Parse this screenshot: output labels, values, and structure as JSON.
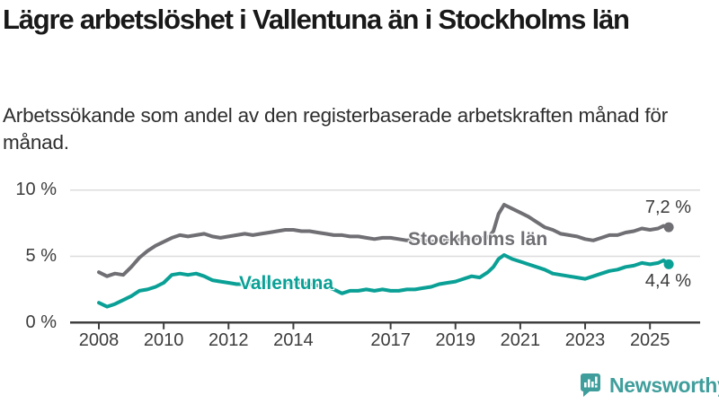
{
  "chart_data": {
    "type": "line",
    "title": "Lägre arbetslöshet i Vallentuna än i Stockholms län",
    "subtitle": "Arbetssökande som andel av den registerbaserade arbetskraften månad för månad.",
    "unit": "%",
    "grid": "horizontal",
    "legend_position": "inline-end-of-line",
    "ylim": [
      0,
      11
    ],
    "y_ticks": [
      0,
      5,
      10
    ],
    "y_tick_labels": [
      "0 %",
      "5 %",
      "10 %"
    ],
    "x_ticks": [
      2008,
      2010,
      2012,
      2014,
      2017,
      2019,
      2021,
      2023,
      2025
    ],
    "x_tick_labels": [
      "2008",
      "2010",
      "2012",
      "2014",
      "2017",
      "2019",
      "2021",
      "2023",
      "2025"
    ],
    "x_range": [
      2008.0,
      2025.58
    ],
    "axis_color": "#3f3f3f",
    "gridline_color": "#dcdcdc",
    "series": [
      {
        "id": "stockholms-lan",
        "label": "Stockholms län",
        "color": "#6f6f74",
        "end_label": "7,2 %",
        "end_value": 7.2,
        "x": [
          2008.0,
          2008.25,
          2008.5,
          2008.75,
          2009.0,
          2009.25,
          2009.5,
          2009.75,
          2010.0,
          2010.25,
          2010.5,
          2010.75,
          2011.0,
          2011.25,
          2011.5,
          2011.75,
          2012.0,
          2012.25,
          2012.5,
          2012.75,
          2013.0,
          2013.25,
          2013.5,
          2013.75,
          2014.0,
          2014.25,
          2014.5,
          2014.75,
          2015.0,
          2015.25,
          2015.5,
          2015.75,
          2016.0,
          2016.25,
          2016.5,
          2016.75,
          2017.0,
          2017.25,
          2017.5,
          2017.75,
          2018.0,
          2018.25,
          2018.5,
          2018.75,
          2019.0,
          2019.25,
          2019.5,
          2019.75,
          2020.0,
          2020.17,
          2020.33,
          2020.5,
          2020.75,
          2021.0,
          2021.25,
          2021.5,
          2021.75,
          2022.0,
          2022.25,
          2022.5,
          2022.75,
          2023.0,
          2023.25,
          2023.5,
          2023.75,
          2024.0,
          2024.25,
          2024.5,
          2024.75,
          2025.0,
          2025.25,
          2025.42,
          2025.58
        ],
        "values": [
          3.8,
          3.5,
          3.7,
          3.6,
          4.2,
          4.9,
          5.4,
          5.8,
          6.1,
          6.4,
          6.6,
          6.5,
          6.6,
          6.7,
          6.5,
          6.4,
          6.5,
          6.6,
          6.7,
          6.6,
          6.7,
          6.8,
          6.9,
          7.0,
          7.0,
          6.9,
          6.9,
          6.8,
          6.7,
          6.6,
          6.6,
          6.5,
          6.5,
          6.4,
          6.3,
          6.4,
          6.4,
          6.3,
          6.2,
          6.3,
          6.2,
          6.1,
          6.2,
          6.2,
          6.2,
          6.3,
          6.3,
          6.4,
          6.4,
          6.9,
          8.2,
          8.9,
          8.6,
          8.3,
          8.0,
          7.6,
          7.2,
          7.0,
          6.7,
          6.6,
          6.5,
          6.3,
          6.2,
          6.4,
          6.6,
          6.6,
          6.8,
          6.9,
          7.1,
          7.0,
          7.1,
          7.3,
          7.2
        ]
      },
      {
        "id": "vallentuna",
        "label": "Vallentuna",
        "color": "#0aa096",
        "end_label": "4,4 %",
        "end_value": 4.4,
        "x": [
          2008.0,
          2008.25,
          2008.5,
          2008.75,
          2009.0,
          2009.25,
          2009.5,
          2009.75,
          2010.0,
          2010.25,
          2010.5,
          2010.75,
          2011.0,
          2011.25,
          2011.5,
          2011.75,
          2012.0,
          2012.25,
          2012.5,
          2012.75,
          2013.0,
          2013.25,
          2013.5,
          2013.75,
          2014.0,
          2014.25,
          2014.5,
          2014.75,
          2015.0,
          2015.25,
          2015.5,
          2015.75,
          2016.0,
          2016.25,
          2016.5,
          2016.75,
          2017.0,
          2017.25,
          2017.5,
          2017.75,
          2018.0,
          2018.25,
          2018.5,
          2018.75,
          2019.0,
          2019.25,
          2019.5,
          2019.75,
          2020.0,
          2020.17,
          2020.33,
          2020.5,
          2020.75,
          2021.0,
          2021.25,
          2021.5,
          2021.75,
          2022.0,
          2022.25,
          2022.5,
          2022.75,
          2023.0,
          2023.25,
          2023.5,
          2023.75,
          2024.0,
          2024.25,
          2024.5,
          2024.75,
          2025.0,
          2025.25,
          2025.42,
          2025.58
        ],
        "values": [
          1.5,
          1.2,
          1.4,
          1.7,
          2.0,
          2.4,
          2.5,
          2.7,
          3.0,
          3.6,
          3.7,
          3.6,
          3.7,
          3.5,
          3.2,
          3.1,
          3.0,
          2.9,
          2.9,
          2.9,
          3.0,
          3.1,
          3.1,
          3.0,
          3.1,
          3.0,
          2.9,
          2.8,
          2.7,
          2.5,
          2.2,
          2.4,
          2.4,
          2.5,
          2.4,
          2.5,
          2.4,
          2.4,
          2.5,
          2.5,
          2.6,
          2.7,
          2.9,
          3.0,
          3.1,
          3.3,
          3.5,
          3.4,
          3.8,
          4.2,
          4.8,
          5.1,
          4.8,
          4.6,
          4.4,
          4.2,
          4.0,
          3.7,
          3.6,
          3.5,
          3.4,
          3.3,
          3.5,
          3.7,
          3.9,
          4.0,
          4.2,
          4.3,
          4.5,
          4.4,
          4.5,
          4.7,
          4.4
        ]
      }
    ]
  },
  "branding": {
    "logo_text": "Newsworthy",
    "logo_color": "#3f9e9c"
  }
}
